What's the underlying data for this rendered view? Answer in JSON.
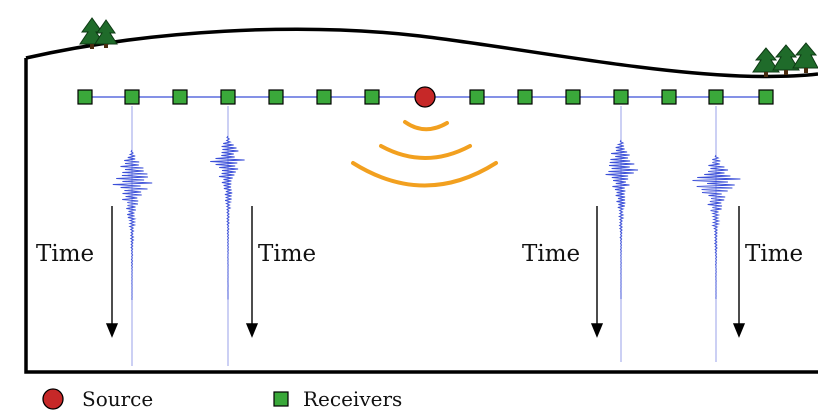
{
  "labels": {
    "time": "Time"
  },
  "legend": {
    "source": "Source",
    "receivers": "Receivers"
  },
  "colors": {
    "source_fill": "#c62828",
    "receiver_fill": "#3aa83a",
    "trace": "#3b4fd8",
    "wavefront": "#f2a01f",
    "tree": "#1f6b2a",
    "ground": "#000000"
  },
  "icons": {
    "source": "red-circle",
    "receiver": "green-square",
    "trees": "pine-trees"
  },
  "diagram": {
    "receiver_count": 14,
    "traces_shown": 4
  }
}
